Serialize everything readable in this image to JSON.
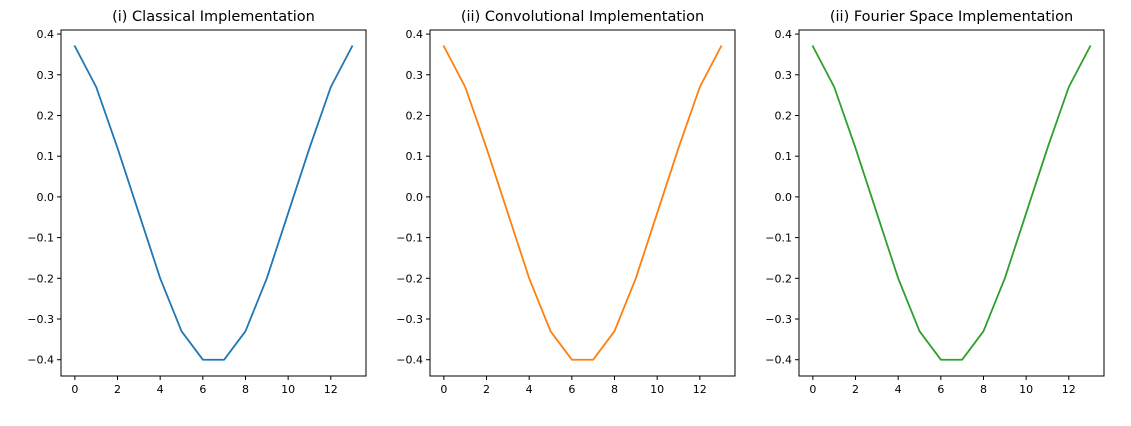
{
  "chart_data": [
    {
      "type": "line",
      "title": "(i) Classical Implementation",
      "xlabel": "",
      "ylabel": "",
      "xlim": [
        -0.65,
        13.65
      ],
      "ylim": [
        -0.44,
        0.41
      ],
      "xticks": [
        0,
        2,
        4,
        6,
        8,
        10,
        12
      ],
      "xtick_labels": [
        "0",
        "2",
        "4",
        "6",
        "8",
        "10",
        "12"
      ],
      "yticks": [
        0.4,
        0.3,
        0.2,
        0.1,
        0.0,
        -0.1,
        -0.2,
        -0.3,
        -0.4
      ],
      "ytick_labels": [
        "0.4",
        "0.3",
        "0.2",
        "0.1",
        "0.0",
        "−0.1",
        "−0.2",
        "−0.3",
        "−0.4"
      ],
      "grid": false,
      "color": "#1f77b4",
      "x": [
        0,
        1,
        2,
        3,
        4,
        5,
        6,
        7,
        8,
        9,
        10,
        11,
        12,
        13
      ],
      "y": [
        0.37,
        0.27,
        0.12,
        -0.04,
        -0.2,
        -0.33,
        -0.4,
        -0.4,
        -0.33,
        -0.2,
        -0.04,
        0.12,
        0.27,
        0.37
      ]
    },
    {
      "type": "line",
      "title": "(ii) Convolutional Implementation",
      "xlabel": "",
      "ylabel": "",
      "xlim": [
        -0.65,
        13.65
      ],
      "ylim": [
        -0.44,
        0.41
      ],
      "xticks": [
        0,
        2,
        4,
        6,
        8,
        10,
        12
      ],
      "xtick_labels": [
        "0",
        "2",
        "4",
        "6",
        "8",
        "10",
        "12"
      ],
      "yticks": [
        0.4,
        0.3,
        0.2,
        0.1,
        0.0,
        -0.1,
        -0.2,
        -0.3,
        -0.4
      ],
      "ytick_labels": [
        "0.4",
        "0.3",
        "0.2",
        "0.1",
        "0.0",
        "−0.1",
        "−0.2",
        "−0.3",
        "−0.4"
      ],
      "grid": false,
      "color": "#ff7f0e",
      "x": [
        0,
        1,
        2,
        3,
        4,
        5,
        6,
        7,
        8,
        9,
        10,
        11,
        12,
        13
      ],
      "y": [
        0.37,
        0.27,
        0.12,
        -0.04,
        -0.2,
        -0.33,
        -0.4,
        -0.4,
        -0.33,
        -0.2,
        -0.04,
        0.12,
        0.27,
        0.37
      ]
    },
    {
      "type": "line",
      "title": "(ii) Fourier Space Implementation",
      "xlabel": "",
      "ylabel": "",
      "xlim": [
        -0.65,
        13.65
      ],
      "ylim": [
        -0.44,
        0.41
      ],
      "xticks": [
        0,
        2,
        4,
        6,
        8,
        10,
        12
      ],
      "xtick_labels": [
        "0",
        "2",
        "4",
        "6",
        "8",
        "10",
        "12"
      ],
      "yticks": [
        0.4,
        0.3,
        0.2,
        0.1,
        0.0,
        -0.1,
        -0.2,
        -0.3,
        -0.4
      ],
      "ytick_labels": [
        "0.4",
        "0.3",
        "0.2",
        "0.1",
        "0.0",
        "−0.1",
        "−0.2",
        "−0.3",
        "−0.4"
      ],
      "grid": false,
      "color": "#2ca02c",
      "x": [
        0,
        1,
        2,
        3,
        4,
        5,
        6,
        7,
        8,
        9,
        10,
        11,
        12,
        13
      ],
      "y": [
        0.37,
        0.27,
        0.12,
        -0.04,
        -0.2,
        -0.33,
        -0.4,
        -0.4,
        -0.33,
        -0.2,
        -0.04,
        0.12,
        0.27,
        0.37
      ]
    }
  ]
}
